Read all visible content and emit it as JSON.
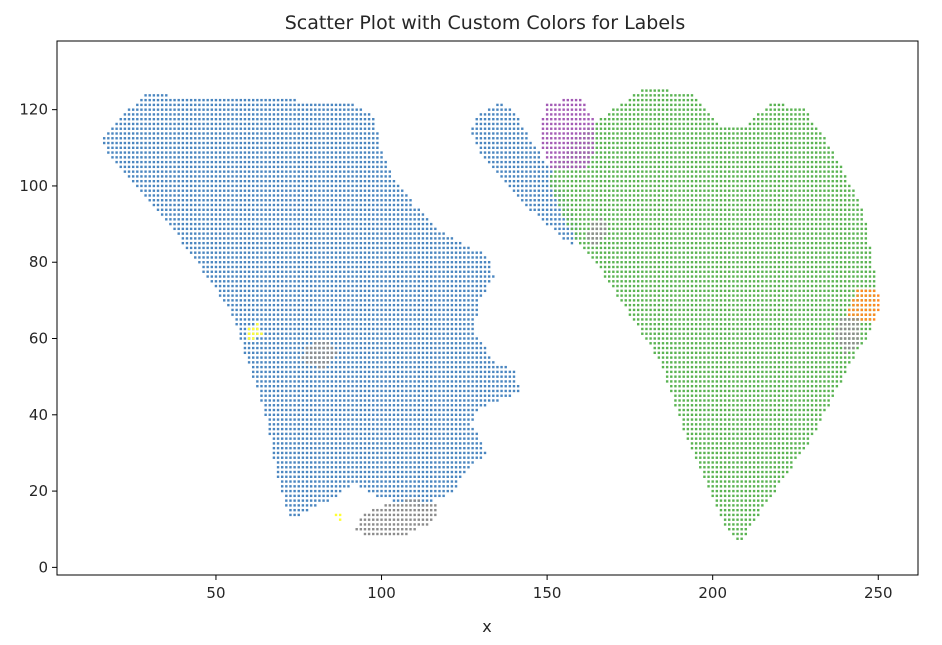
{
  "chart_data": {
    "type": "scatter",
    "title": "Scatter Plot with Custom Colors for Labels",
    "xlabel": "x",
    "ylabel": "",
    "xlim": [
      2,
      262
    ],
    "ylim": [
      -2,
      138
    ],
    "xticks": [
      50,
      100,
      150,
      200,
      250
    ],
    "yticks": [
      0,
      20,
      40,
      60,
      80,
      100,
      120
    ],
    "grid": false,
    "legend": "none",
    "series": [
      {
        "color": "#4a86c0",
        "regions": [
          [
            [
              15,
              112
            ],
            [
              28,
              124
            ],
            [
              60,
              123
            ],
            [
              90,
              122
            ],
            [
              98,
              118
            ],
            [
              100,
              110
            ],
            [
              104,
              102
            ],
            [
              110,
              95
            ],
            [
              118,
              88
            ],
            [
              126,
              84
            ],
            [
              132,
              82
            ],
            [
              134,
              76
            ],
            [
              130,
              70
            ],
            [
              128,
              62
            ],
            [
              134,
              54
            ],
            [
              140,
              52
            ],
            [
              142,
              46
            ],
            [
              130,
              42
            ],
            [
              127,
              38
            ],
            [
              132,
              30
            ],
            [
              126,
              26
            ],
            [
              122,
              20
            ],
            [
              112,
              16
            ],
            [
              100,
              18
            ],
            [
              92,
              22
            ],
            [
              85,
              18
            ],
            [
              76,
              14
            ],
            [
              73,
              12
            ],
            [
              71,
              16
            ],
            [
              68,
              26
            ],
            [
              66,
              36
            ],
            [
              62,
              48
            ],
            [
              58,
              58
            ],
            [
              55,
              66
            ],
            [
              50,
              73
            ],
            [
              44,
              80
            ],
            [
              36,
              90
            ],
            [
              26,
              100
            ],
            [
              17,
              109
            ]
          ],
          [
            [
              128,
              118
            ],
            [
              136,
              122
            ],
            [
              140,
              120
            ],
            [
              145,
              112
            ],
            [
              150,
              106
            ],
            [
              156,
              96
            ],
            [
              160,
              88
            ],
            [
              158,
              84
            ],
            [
              150,
              90
            ],
            [
              142,
              96
            ],
            [
              136,
              102
            ],
            [
              130,
              108
            ],
            [
              127,
              114
            ]
          ]
        ]
      },
      {
        "color": "#5ab352",
        "regions": [
          [
            [
              150,
              102
            ],
            [
              158,
              112
            ],
            [
              170,
              120
            ],
            [
              180,
              126
            ],
            [
              194,
              124
            ],
            [
              202,
              116
            ],
            [
              210,
              116
            ],
            [
              218,
              122
            ],
            [
              228,
              120
            ],
            [
              236,
              110
            ],
            [
              242,
              100
            ],
            [
              246,
              92
            ],
            [
              248,
              82
            ],
            [
              250,
              72
            ],
            [
              248,
              62
            ],
            [
              242,
              54
            ],
            [
              236,
              44
            ],
            [
              230,
              34
            ],
            [
              222,
              24
            ],
            [
              214,
              14
            ],
            [
              208,
              6
            ],
            [
              204,
              10
            ],
            [
              198,
              22
            ],
            [
              192,
              34
            ],
            [
              188,
              44
            ],
            [
              184,
              54
            ],
            [
              178,
              62
            ],
            [
              172,
              70
            ],
            [
              166,
              78
            ],
            [
              160,
              84
            ],
            [
              155,
              92
            ]
          ]
        ]
      },
      {
        "color": "#a35bb5",
        "regions": [
          [
            [
              148,
              116
            ],
            [
              150,
              122
            ],
            [
              160,
              123
            ],
            [
              164,
              118
            ],
            [
              164,
              108
            ],
            [
              162,
              105
            ],
            [
              152,
              104
            ],
            [
              149,
              108
            ]
          ]
        ]
      },
      {
        "color": "#ff8a1f",
        "regions": [
          [
            [
              241,
              68
            ],
            [
              244,
              73
            ],
            [
              249,
              73
            ],
            [
              251,
              70
            ],
            [
              249,
              64
            ],
            [
              244,
              64
            ],
            [
              241,
              66
            ]
          ]
        ]
      },
      {
        "color": "#8c8c8c",
        "regions": [
          [
            [
              238,
              66
            ],
            [
              244,
              66
            ],
            [
              244,
              58
            ],
            [
              240,
              56
            ],
            [
              237,
              60
            ]
          ],
          [
            [
              92,
              10
            ],
            [
              96,
              8
            ],
            [
              106,
              8
            ],
            [
              116,
              12
            ],
            [
              118,
              16
            ],
            [
              110,
              18
            ],
            [
              100,
              16
            ],
            [
              94,
              14
            ]
          ],
          [
            [
              163,
              90
            ],
            [
              167,
              92
            ],
            [
              169,
              88
            ],
            [
              165,
              84
            ],
            [
              162,
              86
            ]
          ],
          [
            [
              77,
              58
            ],
            [
              84,
              60
            ],
            [
              87,
              56
            ],
            [
              82,
              52
            ],
            [
              76,
              54
            ]
          ]
        ]
      },
      {
        "color": "#ffff33",
        "regions": [
          [
            [
              59,
              63
            ],
            [
              63,
              64
            ],
            [
              64,
              61
            ],
            [
              61,
              59
            ],
            [
              59,
              60
            ]
          ],
          [
            [
              85,
              14
            ],
            [
              88,
              15
            ],
            [
              89,
              13
            ],
            [
              87,
              12
            ]
          ]
        ]
      }
    ]
  }
}
